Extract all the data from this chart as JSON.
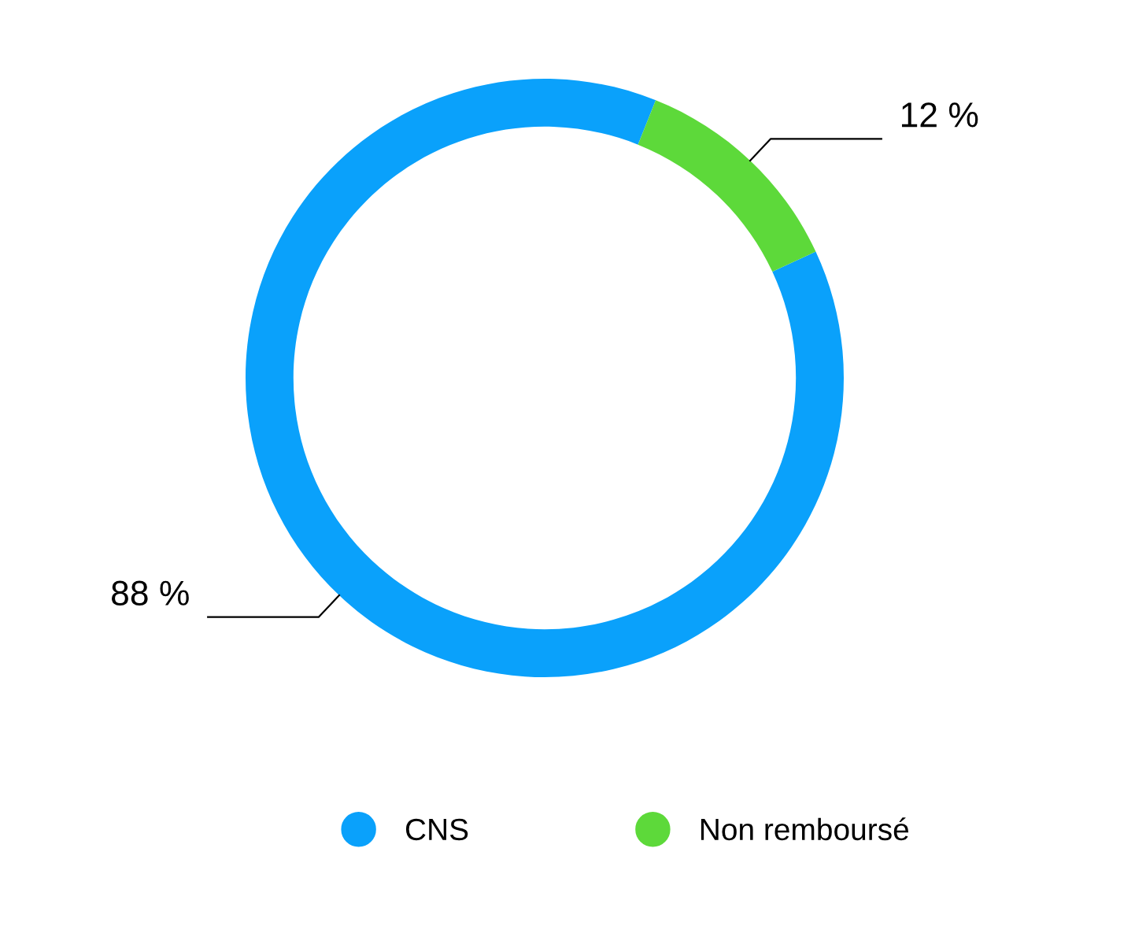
{
  "chart_data": {
    "type": "donut",
    "categories": [
      "CNS",
      "Non remboursé"
    ],
    "values": [
      88,
      12
    ],
    "colors": [
      "#0aa1fb",
      "#5dd93a"
    ],
    "value_labels": [
      "88 %",
      "12 %"
    ],
    "legend": "bottom"
  }
}
